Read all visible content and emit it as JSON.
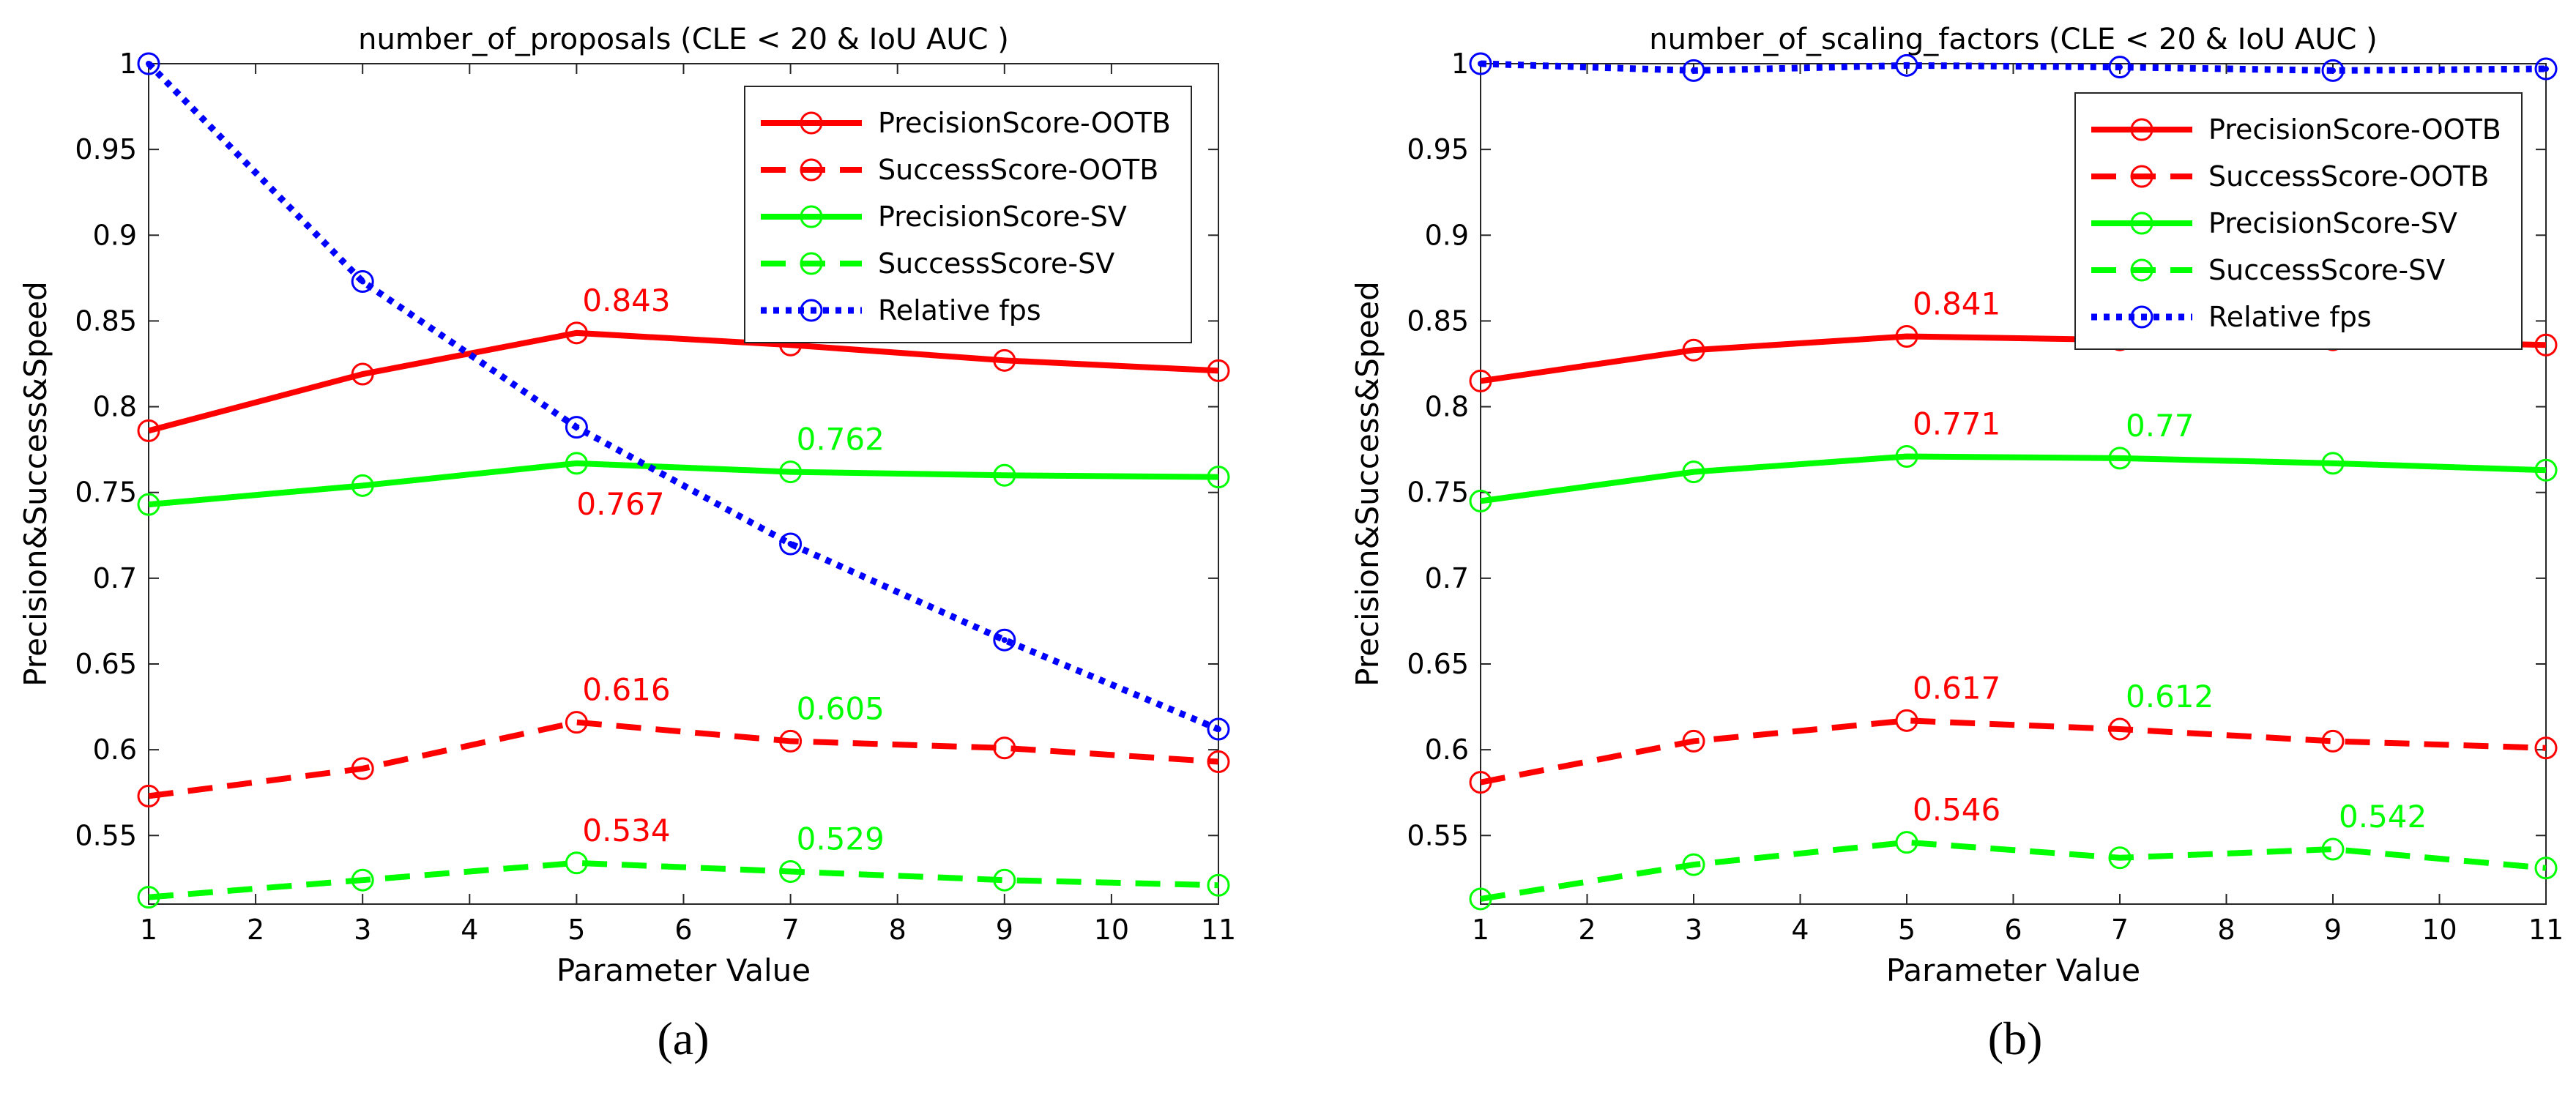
{
  "chart_data": [
    {
      "type": "line",
      "title": "number_of_proposals (CLE < 20 & IoU AUC )",
      "xlabel": "Parameter Value",
      "ylabel": "Precision&Success&Speed",
      "xlim": [
        1,
        11
      ],
      "ylim": [
        0.51,
        1.0
      ],
      "xticks": [
        "1",
        "2",
        "3",
        "4",
        "5",
        "6",
        "7",
        "8",
        "9",
        "10",
        "11"
      ],
      "yticks": [
        "0.55",
        "0.6",
        "0.65",
        "0.7",
        "0.75",
        "0.8",
        "0.85",
        "0.9",
        "0.95",
        "1"
      ],
      "ytick_values": [
        0.55,
        0.6,
        0.65,
        0.7,
        0.75,
        0.8,
        0.85,
        0.9,
        0.95,
        1.0
      ],
      "legend_position": "top-right",
      "caption": "(a)",
      "x": [
        1,
        3,
        5,
        7,
        9,
        11
      ],
      "series": [
        {
          "name": "PrecisionScore-OOTB",
          "color": "#ff0000",
          "style": "solid",
          "values": [
            0.786,
            0.819,
            0.843,
            0.836,
            0.827,
            0.821
          ]
        },
        {
          "name": "SuccessScore-OOTB",
          "color": "#ff0000",
          "style": "dashed",
          "values": [
            0.573,
            0.589,
            0.616,
            0.605,
            0.601,
            0.593
          ]
        },
        {
          "name": "PrecisionScore-SV",
          "color": "#00ff00",
          "style": "solid",
          "values": [
            0.743,
            0.754,
            0.767,
            0.762,
            0.76,
            0.759
          ]
        },
        {
          "name": "SuccessScore-SV",
          "color": "#00ff00",
          "style": "dashed",
          "values": [
            0.514,
            0.524,
            0.534,
            0.529,
            0.524,
            0.521
          ]
        },
        {
          "name": "Relative fps",
          "color": "#0000ff",
          "style": "dotted",
          "values": [
            1.0,
            0.873,
            0.788,
            0.72,
            0.664,
            0.612
          ]
        }
      ],
      "annotations": [
        {
          "text": "0.843",
          "x": 5,
          "y": 0.843,
          "color": "#ff0000",
          "pos": "above"
        },
        {
          "text": "0.767",
          "x": 5,
          "y": 0.767,
          "color": "#ff0000",
          "pos": "below"
        },
        {
          "text": "0.762",
          "x": 7,
          "y": 0.762,
          "color": "#00ff00",
          "pos": "above"
        },
        {
          "text": "0.616",
          "x": 5,
          "y": 0.616,
          "color": "#ff0000",
          "pos": "above"
        },
        {
          "text": "0.605",
          "x": 7,
          "y": 0.605,
          "color": "#00ff00",
          "pos": "above"
        },
        {
          "text": "0.534",
          "x": 5,
          "y": 0.534,
          "color": "#ff0000",
          "pos": "above"
        },
        {
          "text": "0.529",
          "x": 7,
          "y": 0.529,
          "color": "#00ff00",
          "pos": "above"
        }
      ]
    },
    {
      "type": "line",
      "title": "number_of_scaling_factors (CLE < 20 & IoU AUC )",
      "xlabel": "Parameter Value",
      "ylabel": "Precision&Success&Speed",
      "xlim": [
        1,
        11
      ],
      "ylim": [
        0.51,
        1.0
      ],
      "xticks": [
        "1",
        "2",
        "3",
        "4",
        "5",
        "6",
        "7",
        "8",
        "9",
        "10",
        "11"
      ],
      "yticks": [
        "0.55",
        "0.6",
        "0.65",
        "0.7",
        "0.75",
        "0.8",
        "0.85",
        "0.9",
        "0.95",
        "1"
      ],
      "ytick_values": [
        0.55,
        0.6,
        0.65,
        0.7,
        0.75,
        0.8,
        0.85,
        0.9,
        0.95,
        1.0
      ],
      "legend_position": "top-right",
      "caption": "(b)",
      "x": [
        1,
        3,
        5,
        7,
        9,
        11
      ],
      "series": [
        {
          "name": "PrecisionScore-OOTB",
          "color": "#ff0000",
          "style": "solid",
          "values": [
            0.815,
            0.833,
            0.841,
            0.839,
            0.839,
            0.836
          ]
        },
        {
          "name": "SuccessScore-OOTB",
          "color": "#ff0000",
          "style": "dashed",
          "values": [
            0.581,
            0.605,
            0.617,
            0.612,
            0.605,
            0.601
          ]
        },
        {
          "name": "PrecisionScore-SV",
          "color": "#00ff00",
          "style": "solid",
          "values": [
            0.745,
            0.762,
            0.771,
            0.77,
            0.767,
            0.763
          ]
        },
        {
          "name": "SuccessScore-SV",
          "color": "#00ff00",
          "style": "dashed",
          "values": [
            0.513,
            0.533,
            0.546,
            0.537,
            0.542,
            0.531
          ]
        },
        {
          "name": "Relative fps",
          "color": "#0000ff",
          "style": "dotted",
          "values": [
            1.0,
            0.996,
            0.999,
            0.998,
            0.996,
            0.997
          ]
        }
      ],
      "annotations": [
        {
          "text": "0.841",
          "x": 5,
          "y": 0.841,
          "color": "#ff0000",
          "pos": "above"
        },
        {
          "text": "0.771",
          "x": 5,
          "y": 0.771,
          "color": "#ff0000",
          "pos": "above"
        },
        {
          "text": "0.77",
          "x": 7,
          "y": 0.77,
          "color": "#00ff00",
          "pos": "above"
        },
        {
          "text": "0.617",
          "x": 5,
          "y": 0.617,
          "color": "#ff0000",
          "pos": "above"
        },
        {
          "text": "0.612",
          "x": 7,
          "y": 0.612,
          "color": "#00ff00",
          "pos": "above"
        },
        {
          "text": "0.546",
          "x": 5,
          "y": 0.546,
          "color": "#ff0000",
          "pos": "above"
        },
        {
          "text": "0.542",
          "x": 9,
          "y": 0.542,
          "color": "#00ff00",
          "pos": "above"
        }
      ]
    }
  ]
}
